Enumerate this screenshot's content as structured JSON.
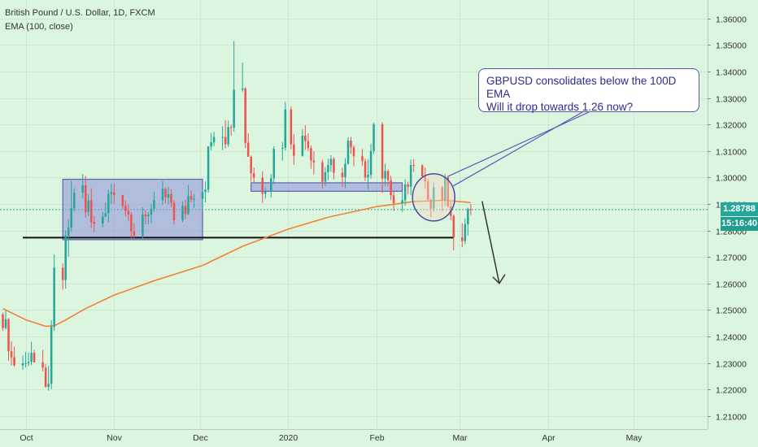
{
  "legend": {
    "title": "British Pound / U.S. Dollar, 1D, FXCM",
    "indicator": "EMA (100, close)"
  },
  "annotation": {
    "line1": "GBPUSD consolidates below the 100D EMA",
    "line2": "Will it drop towards 1.26 now?"
  },
  "price_tag": {
    "last_price": "1.28788",
    "countdown": "15:16:40"
  },
  "colors": {
    "background": "#dcf5df",
    "bull": "#26a69a",
    "bear": "#ef5350",
    "ema": "#f57c2c",
    "box_fill": "#8c8ed8",
    "box_stroke": "#4b4ba0",
    "callout_border": "#5b56b8",
    "last_price_tag": "#26a69a",
    "countdown_tag": "#1f9e8f"
  },
  "chart_data": {
    "type": "candlestick",
    "title": "British Pound / U.S. Dollar, 1D, FXCM",
    "y_ticks": [
      "1.21000",
      "1.22000",
      "1.23000",
      "1.24000",
      "1.25000",
      "1.26000",
      "1.27000",
      "1.28000",
      "1.29000",
      "1.30000",
      "1.31000",
      "1.32000",
      "1.33000",
      "1.34000",
      "1.35000",
      "1.36000"
    ],
    "ylim": [
      1.205,
      1.367
    ],
    "x_ticks": [
      {
        "label": "Oct",
        "date": "2019-10-01"
      },
      {
        "label": "Nov",
        "date": "2019-11-01"
      },
      {
        "label": "Dec",
        "date": "2019-12-01"
      },
      {
        "label": "2020",
        "date": "2020-01-01"
      },
      {
        "label": "Feb",
        "date": "2020-02-01"
      },
      {
        "label": "Mar",
        "date": "2020-03-01"
      },
      {
        "label": "Apr",
        "date": "2020-04-01"
      },
      {
        "label": "May",
        "date": "2020-05-01"
      }
    ],
    "xlim": [
      "2019-09-22",
      "2020-05-27"
    ],
    "candles": [
      [
        "2019-09-23",
        1.2483,
        1.249,
        1.2421,
        1.2432
      ],
      [
        "2019-09-24",
        1.2432,
        1.25,
        1.2426,
        1.2465
      ],
      [
        "2019-09-25",
        1.2465,
        1.2469,
        1.2308,
        1.2344
      ],
      [
        "2019-09-26",
        1.2344,
        1.2382,
        1.229,
        1.2321
      ],
      [
        "2019-09-27",
        1.2321,
        1.2362,
        1.2285,
        1.2291
      ],
      [
        "2019-09-30",
        1.2291,
        1.2328,
        1.2274,
        1.2298
      ],
      [
        "2019-10-01",
        1.2298,
        1.2341,
        1.2282,
        1.2299
      ],
      [
        "2019-10-02",
        1.2299,
        1.2339,
        1.2288,
        1.2304
      ],
      [
        "2019-10-03",
        1.2304,
        1.2379,
        1.2292,
        1.2338
      ],
      [
        "2019-10-04",
        1.2338,
        1.2349,
        1.2302,
        1.2302
      ],
      [
        "2019-10-07",
        1.2302,
        1.2349,
        1.2268,
        1.2282
      ],
      [
        "2019-10-08",
        1.2282,
        1.2295,
        1.2206,
        1.221
      ],
      [
        "2019-10-09",
        1.221,
        1.2289,
        1.2195,
        1.2221
      ],
      [
        "2019-10-10",
        1.2221,
        1.2461,
        1.2201,
        1.2436
      ],
      [
        "2019-10-11",
        1.2436,
        1.2709,
        1.2421,
        1.2659
      ],
      [
        "2019-10-14",
        1.2659,
        1.2675,
        1.2576,
        1.2613
      ],
      [
        "2019-10-15",
        1.2613,
        1.28,
        1.258,
        1.278
      ],
      [
        "2019-10-16",
        1.278,
        1.2842,
        1.2701,
        1.2811
      ],
      [
        "2019-10-17",
        1.2811,
        1.2988,
        1.2795,
        1.2884
      ],
      [
        "2019-10-18",
        1.2884,
        1.296,
        1.2871,
        1.2943
      ],
      [
        "2019-10-21",
        1.2943,
        1.3013,
        1.292,
        1.297
      ],
      [
        "2019-10-22",
        1.297,
        1.3006,
        1.285,
        1.287
      ],
      [
        "2019-10-23",
        1.287,
        1.2936,
        1.2855,
        1.2913
      ],
      [
        "2019-10-24",
        1.2913,
        1.296,
        1.281,
        1.2832
      ],
      [
        "2019-10-25",
        1.2832,
        1.2856,
        1.2794,
        1.2826
      ],
      [
        "2019-10-28",
        1.2826,
        1.287,
        1.2812,
        1.2853
      ],
      [
        "2019-10-29",
        1.2853,
        1.2906,
        1.2851,
        1.2865
      ],
      [
        "2019-10-30",
        1.2865,
        1.2955,
        1.2832,
        1.2938
      ],
      [
        "2019-10-31",
        1.2938,
        1.2976,
        1.2899,
        1.2944
      ],
      [
        "2019-11-01",
        1.2944,
        1.2975,
        1.2901,
        1.2934
      ],
      [
        "2019-11-04",
        1.2934,
        1.2934,
        1.2881,
        1.2893
      ],
      [
        "2019-11-05",
        1.2893,
        1.2912,
        1.2853,
        1.2874
      ],
      [
        "2019-11-06",
        1.2874,
        1.2898,
        1.2835,
        1.286
      ],
      [
        "2019-11-07",
        1.286,
        1.2869,
        1.2769,
        1.2797
      ],
      [
        "2019-11-08",
        1.2797,
        1.2827,
        1.2768,
        1.278
      ],
      [
        "2019-11-11",
        1.278,
        1.2887,
        1.277,
        1.286
      ],
      [
        "2019-11-12",
        1.286,
        1.2876,
        1.2823,
        1.2853
      ],
      [
        "2019-11-13",
        1.2853,
        1.2869,
        1.2823,
        1.286
      ],
      [
        "2019-11-14",
        1.286,
        1.2899,
        1.2829,
        1.2882
      ],
      [
        "2019-11-15",
        1.2882,
        1.2946,
        1.287,
        1.2914
      ],
      [
        "2019-11-18",
        1.2914,
        1.2986,
        1.2897,
        1.2957
      ],
      [
        "2019-11-19",
        1.2957,
        1.2962,
        1.2903,
        1.2925
      ],
      [
        "2019-11-20",
        1.2925,
        1.2965,
        1.2898,
        1.2937
      ],
      [
        "2019-11-21",
        1.2937,
        1.2955,
        1.2888,
        1.2904
      ],
      [
        "2019-11-22",
        1.2904,
        1.2913,
        1.2822,
        1.2838
      ],
      [
        "2019-11-25",
        1.2838,
        1.291,
        1.2831,
        1.2893
      ],
      [
        "2019-11-26",
        1.2893,
        1.2916,
        1.2843,
        1.2862
      ],
      [
        "2019-11-27",
        1.2862,
        1.2972,
        1.2858,
        1.293
      ],
      [
        "2019-11-28",
        1.293,
        1.2951,
        1.2906,
        1.2916
      ],
      [
        "2019-11-29",
        1.2916,
        1.2937,
        1.2886,
        1.2919
      ],
      [
        "2019-12-02",
        1.2919,
        1.2953,
        1.2873,
        1.2945
      ],
      [
        "2019-12-03",
        1.2945,
        1.2985,
        1.2906,
        1.2954
      ],
      [
        "2019-12-04",
        1.2954,
        1.3117,
        1.2943,
        1.3117
      ],
      [
        "2019-12-05",
        1.3117,
        1.3168,
        1.3102,
        1.3133
      ],
      [
        "2019-12-06",
        1.3133,
        1.3172,
        1.3119,
        1.3153
      ],
      [
        "2019-12-09",
        1.3153,
        1.3193,
        1.3103,
        1.3153
      ],
      [
        "2019-12-10",
        1.3153,
        1.3217,
        1.3109,
        1.3125
      ],
      [
        "2019-12-11",
        1.3125,
        1.3215,
        1.3115,
        1.319
      ],
      [
        "2019-12-12",
        1.319,
        1.32,
        1.3157,
        1.3188
      ],
      [
        "2019-12-13",
        1.3188,
        1.3515,
        1.3173,
        1.3331
      ],
      [
        "2019-12-16",
        1.3331,
        1.3434,
        1.3324,
        1.3336
      ],
      [
        "2019-12-17",
        1.3336,
        1.3341,
        1.3111,
        1.3131
      ],
      [
        "2019-12-18",
        1.3131,
        1.3166,
        1.3078,
        1.3078
      ],
      [
        "2019-12-19",
        1.3078,
        1.3083,
        1.2984,
        1.3016
      ],
      [
        "2019-12-20",
        1.3016,
        1.3038,
        1.2979,
        1.2999
      ],
      [
        "2019-12-23",
        1.2999,
        1.3023,
        1.2904,
        1.2938
      ],
      [
        "2019-12-24",
        1.2938,
        1.2963,
        1.292,
        1.2948
      ],
      [
        "2019-12-26",
        1.2948,
        1.3013,
        1.2924,
        1.2997
      ],
      [
        "2019-12-27",
        1.2997,
        1.3118,
        1.2976,
        1.3108
      ],
      [
        "2019-12-30",
        1.3108,
        1.3133,
        1.3064,
        1.3112
      ],
      [
        "2019-12-31",
        1.3112,
        1.3285,
        1.3102,
        1.3257
      ],
      [
        "2020-01-02",
        1.3257,
        1.3268,
        1.3106,
        1.3125
      ],
      [
        "2020-01-03",
        1.3125,
        1.3163,
        1.3048,
        1.3082
      ],
      [
        "2020-01-06",
        1.3082,
        1.3183,
        1.3079,
        1.3158
      ],
      [
        "2020-01-07",
        1.3158,
        1.3197,
        1.3104,
        1.3137
      ],
      [
        "2020-01-08",
        1.3137,
        1.3167,
        1.3101,
        1.3111
      ],
      [
        "2020-01-09",
        1.3111,
        1.3121,
        1.3033,
        1.3064
      ],
      [
        "2020-01-10",
        1.3064,
        1.31,
        1.3011,
        1.3057
      ],
      [
        "2020-01-13",
        1.3057,
        1.3067,
        1.2959,
        1.2984
      ],
      [
        "2020-01-14",
        1.2984,
        1.3039,
        1.2968,
        1.302
      ],
      [
        "2020-01-15",
        1.302,
        1.3071,
        1.299,
        1.3047
      ],
      [
        "2020-01-16",
        1.3047,
        1.3084,
        1.3022,
        1.307
      ],
      [
        "2020-01-17",
        1.307,
        1.3077,
        1.2993,
        1.3018
      ],
      [
        "2020-01-20",
        1.3018,
        1.3037,
        1.2963,
        1.3001
      ],
      [
        "2020-01-21",
        1.3001,
        1.3073,
        1.296,
        1.3052
      ],
      [
        "2020-01-22",
        1.3052,
        1.3152,
        1.3048,
        1.3139
      ],
      [
        "2020-01-23",
        1.3139,
        1.3153,
        1.3089,
        1.3114
      ],
      [
        "2020-01-24",
        1.3114,
        1.3121,
        1.3042,
        1.308
      ],
      [
        "2020-01-27",
        1.308,
        1.3107,
        1.3044,
        1.3062
      ],
      [
        "2020-01-28",
        1.3062,
        1.3072,
        1.2987,
        1.3
      ],
      [
        "2020-01-29",
        1.3,
        1.3069,
        1.2954,
        1.301
      ],
      [
        "2020-01-30",
        1.301,
        1.3127,
        1.2995,
        1.31
      ],
      [
        "2020-01-31",
        1.31,
        1.3207,
        1.3089,
        1.3201
      ],
      [
        "2020-02-03",
        1.3201,
        1.3208,
        1.2941,
        1.2996
      ],
      [
        "2020-02-04",
        1.2996,
        1.3052,
        1.2969,
        1.3024
      ],
      [
        "2020-02-05",
        1.3024,
        1.3031,
        1.2966,
        1.299
      ],
      [
        "2020-02-06",
        1.299,
        1.3006,
        1.2914,
        1.2933
      ],
      [
        "2020-02-07",
        1.2933,
        1.2946,
        1.2873,
        1.2903
      ],
      [
        "2020-02-10",
        1.2903,
        1.2946,
        1.287,
        1.2914
      ],
      [
        "2020-02-11",
        1.2914,
        1.2993,
        1.2894,
        1.2974
      ],
      [
        "2020-02-12",
        1.2974,
        1.2984,
        1.2937,
        1.2965
      ],
      [
        "2020-02-13",
        1.2965,
        1.3068,
        1.2933,
        1.3047
      ],
      [
        "2020-02-14",
        1.3047,
        1.307,
        1.3021,
        1.3046
      ],
      [
        "2020-02-17",
        1.3046,
        1.3049,
        1.2999,
        1.3004
      ],
      [
        "2020-02-18",
        1.3004,
        1.3037,
        1.2956,
        1.2985
      ],
      [
        "2020-02-19",
        1.2985,
        1.2995,
        1.2914,
        1.2916
      ],
      [
        "2020-02-20",
        1.2916,
        1.2923,
        1.2851,
        1.2883
      ],
      [
        "2020-02-21",
        1.2883,
        1.2981,
        1.2871,
        1.2963
      ],
      [
        "2020-02-24",
        1.2963,
        1.2969,
        1.2873,
        1.2916
      ],
      [
        "2020-02-25",
        1.2916,
        1.3013,
        1.2894,
        1.3002
      ],
      [
        "2020-02-26",
        1.3002,
        1.3007,
        1.2887,
        1.2891
      ],
      [
        "2020-02-27",
        1.2891,
        1.2909,
        1.2838,
        1.2855
      ],
      [
        "2020-02-28",
        1.2855,
        1.2861,
        1.2725,
        1.2774
      ],
      [
        "2020-03-02",
        1.2774,
        1.2827,
        1.2737,
        1.276
      ],
      [
        "2020-03-03",
        1.276,
        1.2845,
        1.2748,
        1.2824
      ],
      [
        "2020-03-04",
        1.2824,
        1.2886,
        1.2781,
        1.288
      ],
      [
        "2020-03-05",
        1.288,
        1.29,
        1.2858,
        1.2879
      ]
    ],
    "ema_100": [
      [
        "2019-09-23",
        1.2505
      ],
      [
        "2019-10-01",
        1.2463
      ],
      [
        "2019-10-08",
        1.2438
      ],
      [
        "2019-10-11",
        1.244
      ],
      [
        "2019-10-15",
        1.2462
      ],
      [
        "2019-10-22",
        1.2505
      ],
      [
        "2019-11-01",
        1.2556
      ],
      [
        "2019-11-15",
        1.261
      ],
      [
        "2019-12-02",
        1.2668
      ],
      [
        "2019-12-16",
        1.274
      ],
      [
        "2020-01-01",
        1.2805
      ],
      [
        "2020-01-15",
        1.285
      ],
      [
        "2020-02-01",
        1.289
      ],
      [
        "2020-02-14",
        1.2909
      ],
      [
        "2020-02-25",
        1.2914
      ],
      [
        "2020-03-05",
        1.2905
      ]
    ],
    "annotations": {
      "consolidation_boxes": [
        {
          "start": "2019-10-14",
          "end": "2019-12-02",
          "low": 1.2765,
          "high": 1.2993
        },
        {
          "start": "2019-12-19",
          "end": "2020-02-10",
          "low": 1.2948,
          "high": 1.298
        }
      ],
      "support_line": {
        "start": "2019-09-30",
        "end": "2020-02-28",
        "price": 1.2773
      },
      "ellipse": {
        "date": "2020-02-21",
        "price": 1.2925
      },
      "projection_arrow": {
        "from_date": "2020-03-09",
        "from_price": 1.291,
        "to_date": "2020-03-15",
        "to_price": 1.26
      }
    },
    "last_price": 1.28788
  }
}
